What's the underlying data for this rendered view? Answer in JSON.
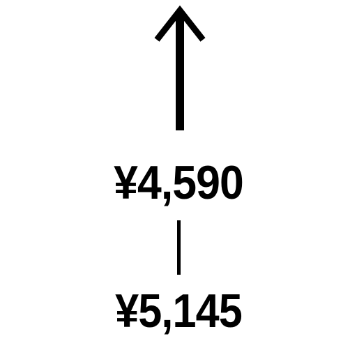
{
  "arrow": {
    "icon": "up-arrow-icon",
    "color": "#000000"
  },
  "prices": {
    "upper": "¥4,590",
    "lower": "¥5,145"
  },
  "divider": {
    "color": "#000000"
  }
}
